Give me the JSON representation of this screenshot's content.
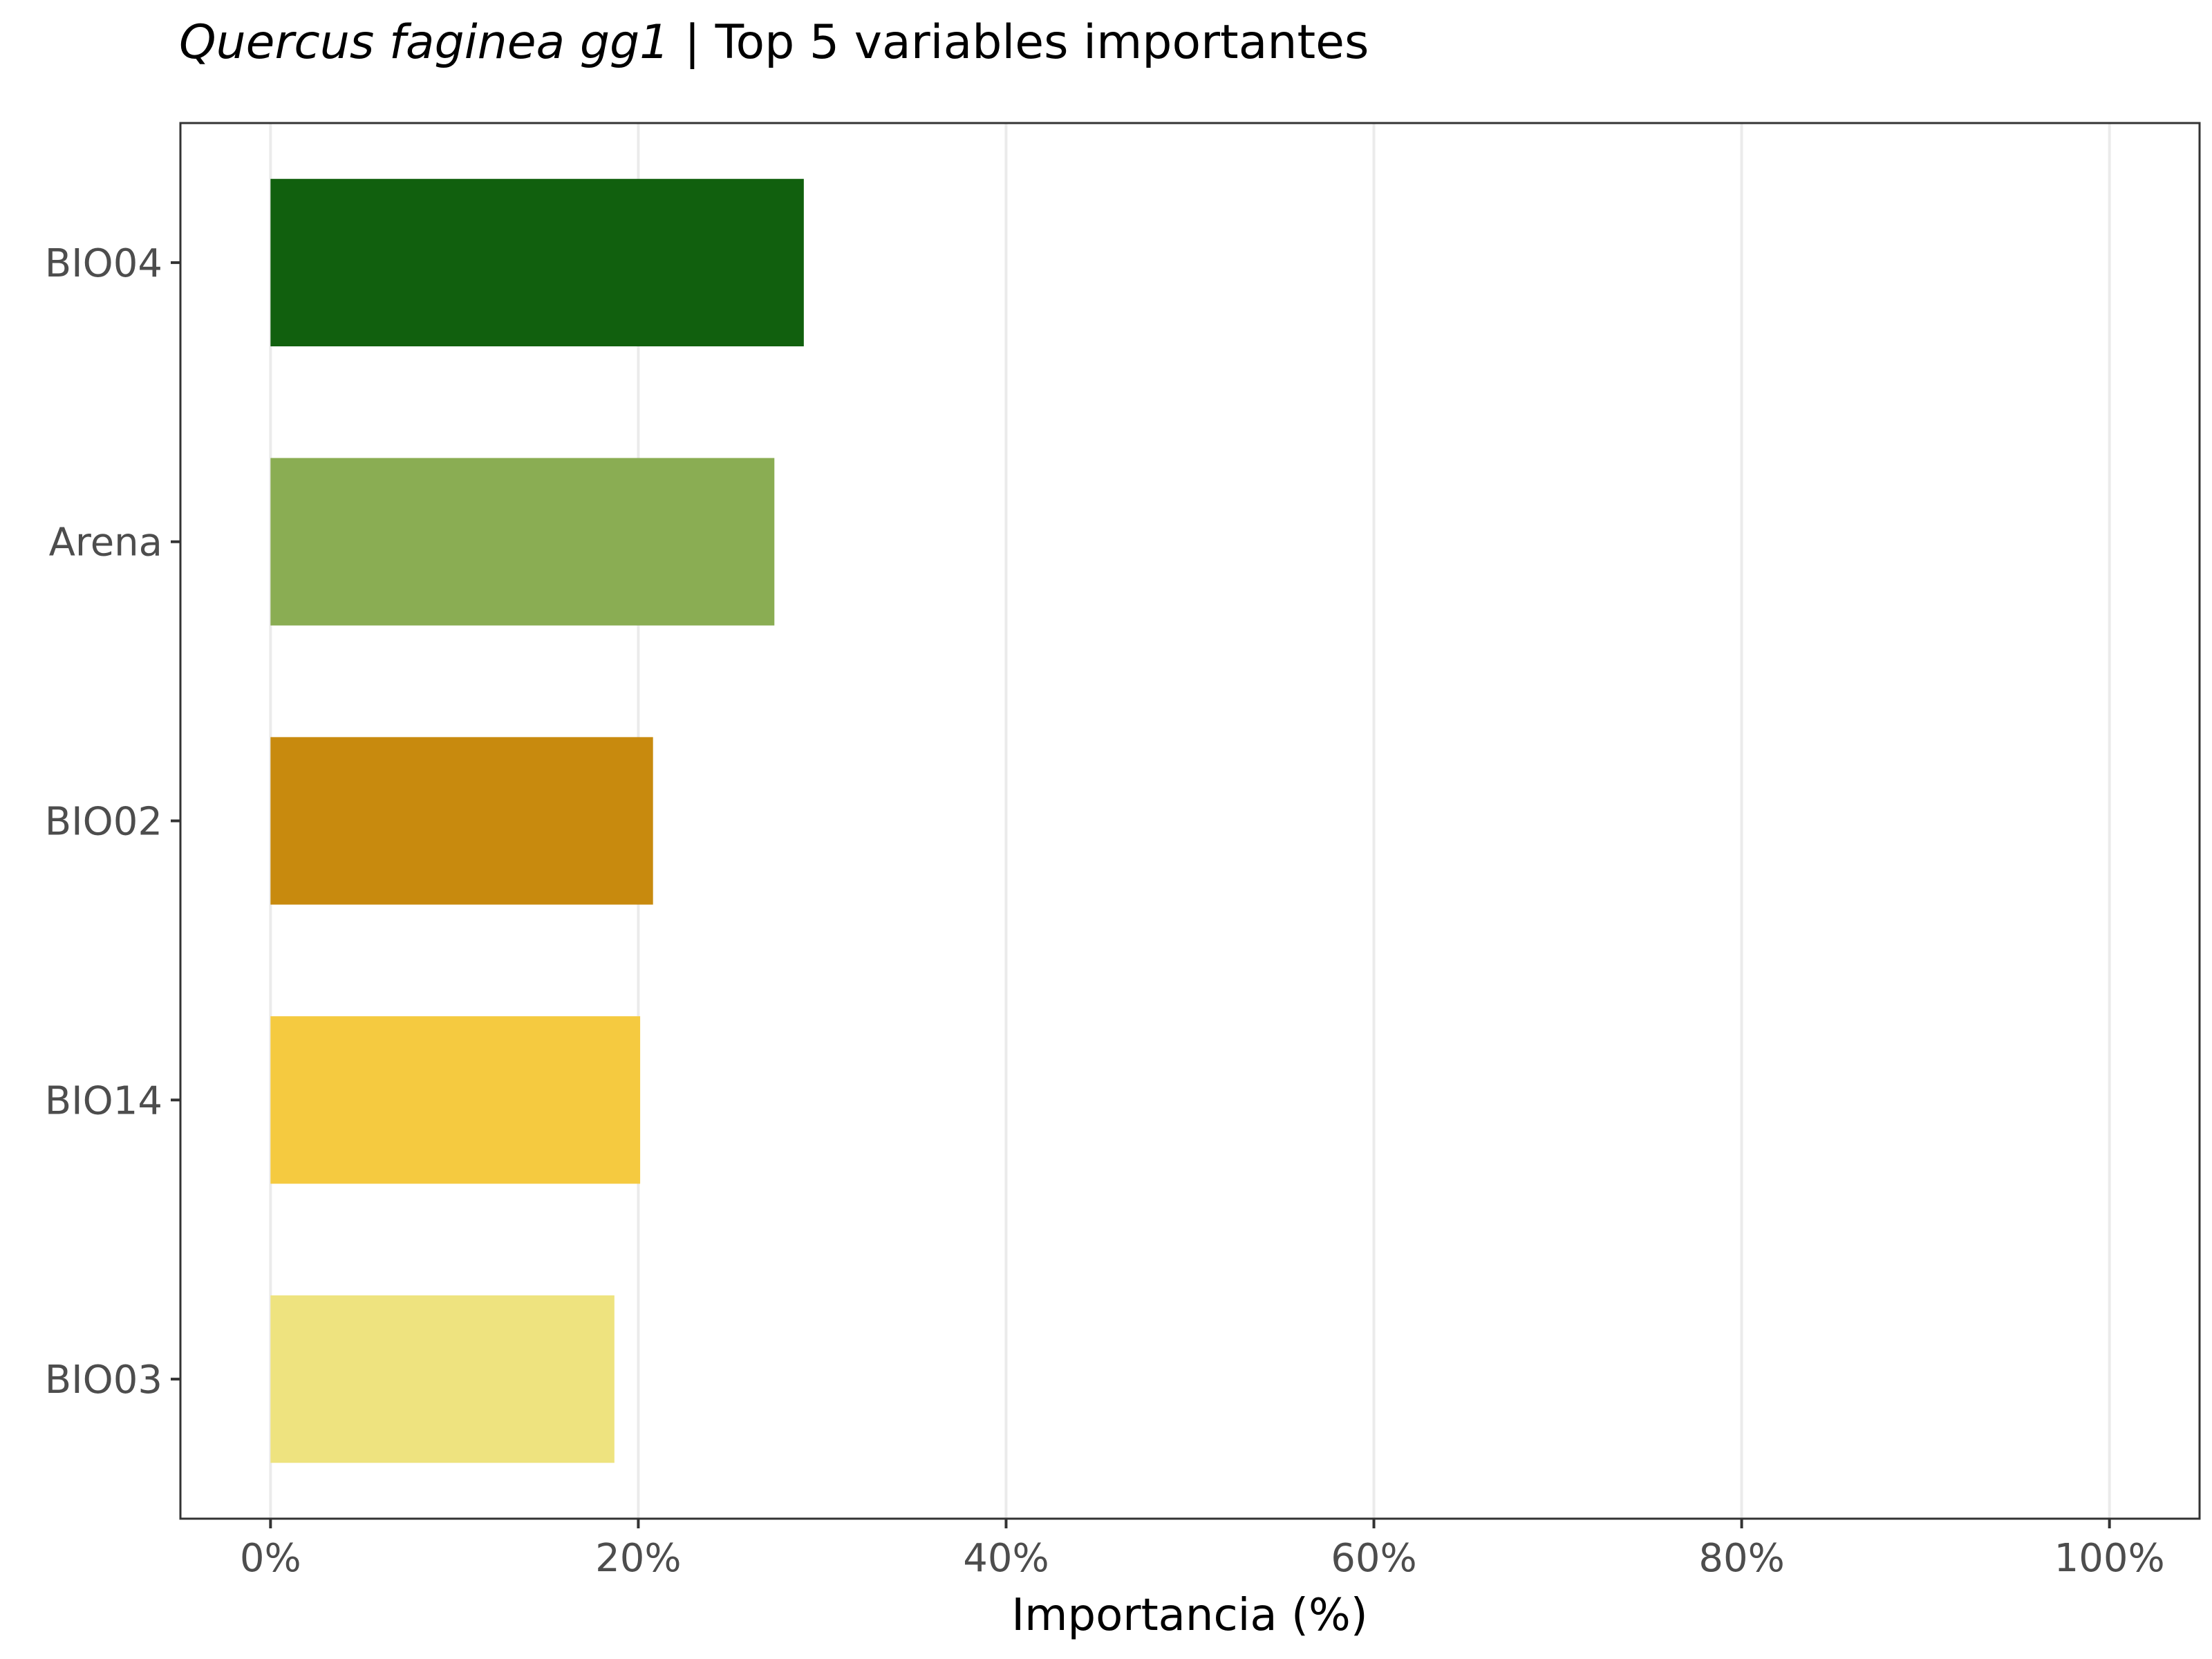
{
  "title": {
    "italic": "Quercus faginea gg1",
    "rest": " | Top 5 variables importantes"
  },
  "chart_data": {
    "type": "bar",
    "orientation": "horizontal",
    "categories": [
      "BIO04",
      "Arena",
      "BIO02",
      "BIO14",
      "BIO03"
    ],
    "values": [
      29.0,
      27.4,
      20.8,
      20.1,
      18.7
    ],
    "colors": [
      "#11600E",
      "#8AAD53",
      "#C88A0E",
      "#F5CA40",
      "#EEE37F"
    ],
    "xlabel": "Importancia (%)",
    "ylabel": "",
    "xlim": [
      -4.9,
      104.9
    ],
    "x_ticks": [
      0,
      20,
      40,
      60,
      80,
      100
    ],
    "x_tick_labels": [
      "0%",
      "20%",
      "40%",
      "60%",
      "80%",
      "100%"
    ],
    "grid": "vertical-major",
    "legend": "none"
  }
}
